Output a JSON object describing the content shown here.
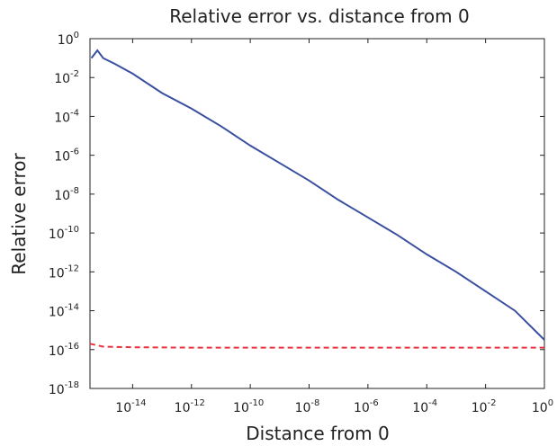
{
  "chart_data": {
    "type": "line",
    "title": "Relative error vs. distance from 0",
    "xlabel": "Distance from 0",
    "ylabel": "Relative error",
    "xscale": "log",
    "yscale": "log",
    "xlim_exponent": [
      -15.45,
      0
    ],
    "ylim_exponent": [
      -18,
      0
    ],
    "grid": false,
    "x_ticks": [
      {
        "base": "10",
        "exp": "-14",
        "value_exp": -14
      },
      {
        "base": "10",
        "exp": "-12",
        "value_exp": -12
      },
      {
        "base": "10",
        "exp": "-10",
        "value_exp": -10
      },
      {
        "base": "10",
        "exp": "-8",
        "value_exp": -8
      },
      {
        "base": "10",
        "exp": "-6",
        "value_exp": -6
      },
      {
        "base": "10",
        "exp": "-4",
        "value_exp": -4
      },
      {
        "base": "10",
        "exp": "-2",
        "value_exp": -2
      },
      {
        "base": "10",
        "exp": "0",
        "value_exp": 0
      }
    ],
    "y_ticks": [
      {
        "base": "10",
        "exp": "0",
        "value_exp": 0
      },
      {
        "base": "10",
        "exp": "-2",
        "value_exp": -2
      },
      {
        "base": "10",
        "exp": "-4",
        "value_exp": -4
      },
      {
        "base": "10",
        "exp": "-6",
        "value_exp": -6
      },
      {
        "base": "10",
        "exp": "-8",
        "value_exp": -8
      },
      {
        "base": "10",
        "exp": "-10",
        "value_exp": -10
      },
      {
        "base": "10",
        "exp": "-12",
        "value_exp": -12
      },
      {
        "base": "10",
        "exp": "-14",
        "value_exp": -14
      },
      {
        "base": "10",
        "exp": "-16",
        "value_exp": -16
      },
      {
        "base": "10",
        "exp": "-18",
        "value_exp": -18
      }
    ],
    "series": [
      {
        "style": "solid",
        "color": "#3a4fa0",
        "x_log10": [
          -15.4,
          -15.2,
          -15.0,
          -14.6,
          -14.0,
          -13.0,
          -12.0,
          -11.0,
          -10.0,
          -9.0,
          -8.0,
          -7.0,
          -6.0,
          -5.0,
          -4.0,
          -3.0,
          -2.0,
          -1.0,
          0.0
        ],
        "y_log10": [
          -1.0,
          -0.6,
          -1.0,
          -1.3,
          -1.8,
          -2.8,
          -3.6,
          -4.5,
          -5.5,
          -6.4,
          -7.3,
          -8.3,
          -9.2,
          -10.1,
          -11.1,
          -12.0,
          -13.0,
          -14.0,
          -15.5
        ]
      },
      {
        "style": "dashed",
        "color": "#e8333f",
        "x_log10": [
          -15.45,
          -15.0,
          -14.0,
          -12.0,
          -8.0,
          -4.0,
          -2.0,
          0.0
        ],
        "y_log10": [
          -15.7,
          -15.85,
          -15.88,
          -15.9,
          -15.9,
          -15.9,
          -15.9,
          -15.9
        ]
      }
    ]
  }
}
